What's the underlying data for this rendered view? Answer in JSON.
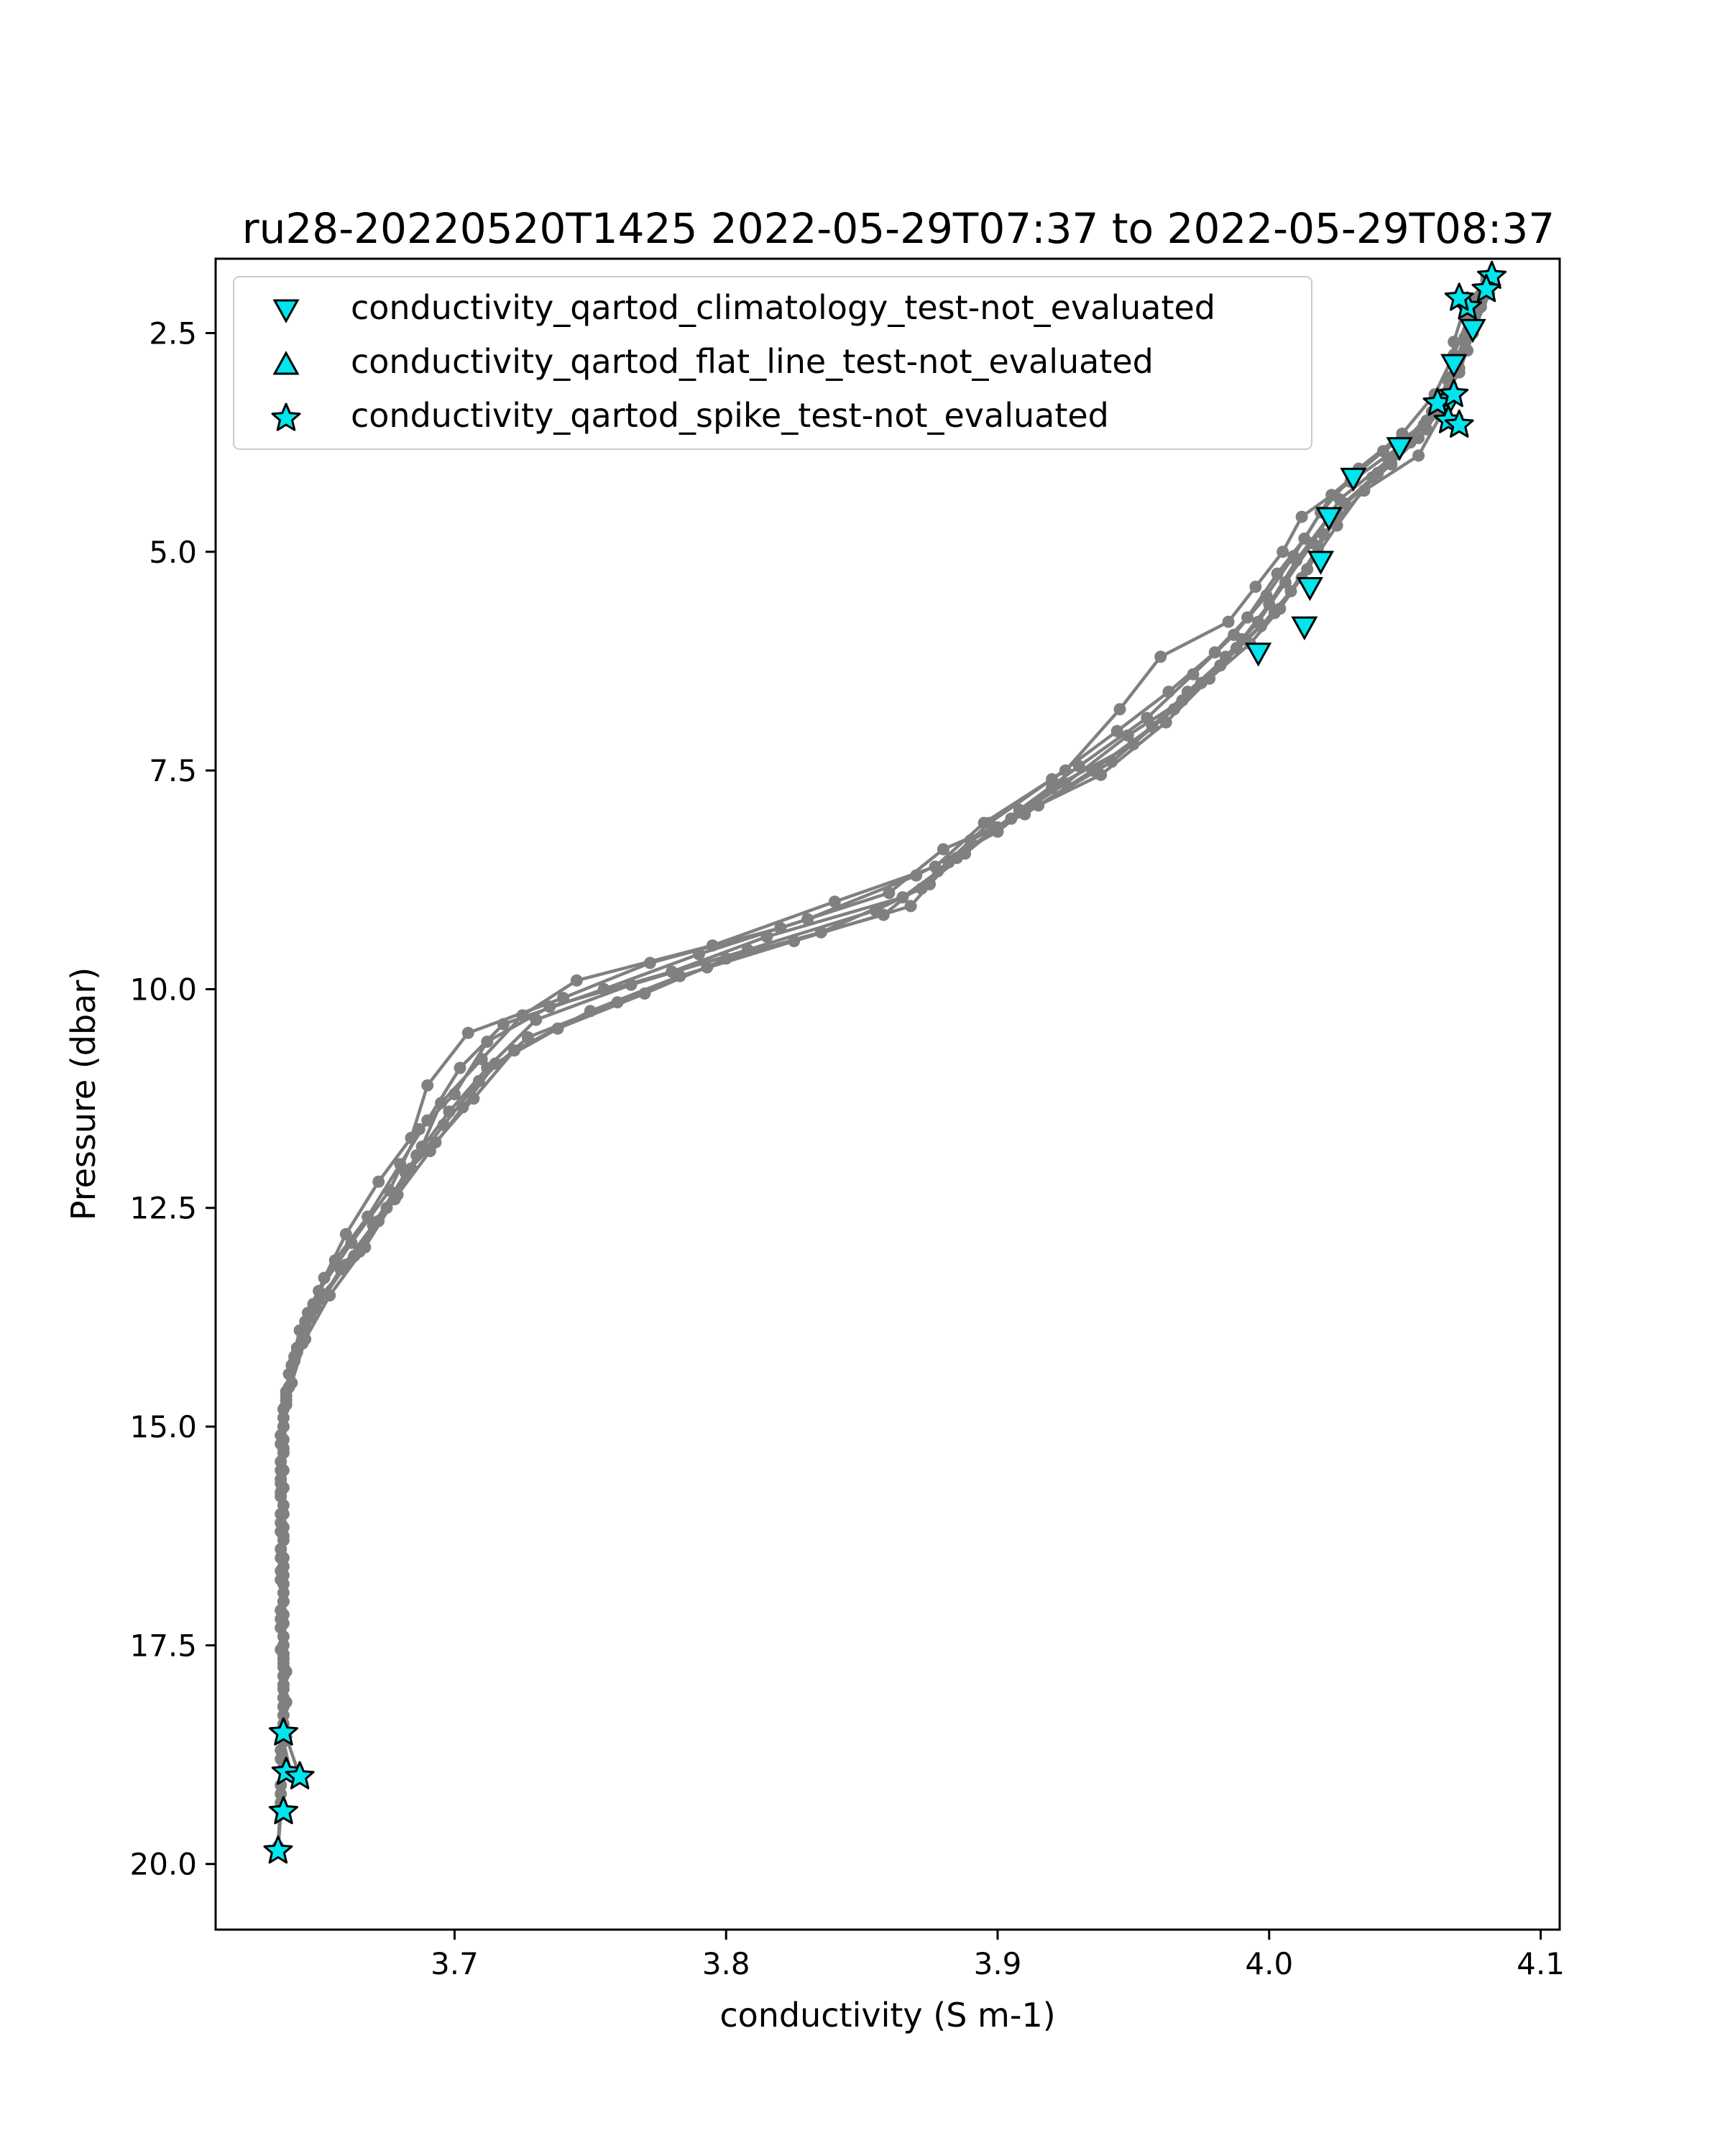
{
  "chart_data": {
    "type": "line",
    "title": "ru28-20220520T1425 2022-05-29T07:37 to 2022-05-29T08:37",
    "xlabel": "conductivity (S m-1)",
    "ylabel": "Pressure (dbar)",
    "xlim": [
      3.612,
      4.107
    ],
    "ylim": [
      20.75,
      1.65
    ],
    "y_inverted": true,
    "x_ticks": [
      "3.7",
      "3.8",
      "3.9",
      "4.0",
      "4.1"
    ],
    "y_ticks": [
      "2.5",
      "5.0",
      "7.5",
      "10.0",
      "12.5",
      "15.0",
      "17.5",
      "20.0"
    ],
    "grid": false,
    "legend_position": "top-left",
    "colors": {
      "profile": "#808080",
      "marker_fill": "#00e5ee",
      "marker_edge": "#000000"
    },
    "legend": [
      {
        "marker": "triangle-down",
        "label": "conductivity_qartod_climatology_test-not_evaluated"
      },
      {
        "marker": "triangle-up",
        "label": "conductivity_qartod_flat_line_test-not_evaluated"
      },
      {
        "marker": "star",
        "label": "conductivity_qartod_spike_test-not_evaluated"
      }
    ],
    "profiles": [
      [
        [
          4.08,
          1.9
        ],
        [
          4.072,
          2.2
        ],
        [
          4.068,
          2.6
        ],
        [
          4.067,
          3.0
        ],
        [
          4.06,
          3.4
        ],
        [
          4.048,
          3.8
        ],
        [
          4.03,
          4.2
        ],
        [
          4.012,
          4.6
        ],
        [
          4.005,
          5.0
        ],
        [
          3.995,
          5.4
        ],
        [
          3.985,
          5.8
        ],
        [
          3.96,
          6.2
        ],
        [
          3.945,
          6.8
        ],
        [
          3.925,
          7.5
        ],
        [
          3.895,
          8.1
        ],
        [
          3.877,
          8.6
        ],
        [
          3.84,
          9.0
        ],
        [
          3.795,
          9.5
        ],
        [
          3.745,
          9.9
        ],
        [
          3.725,
          10.3
        ],
        [
          3.71,
          10.8
        ],
        [
          3.695,
          11.3
        ],
        [
          3.688,
          11.8
        ],
        [
          3.678,
          12.4
        ],
        [
          3.665,
          13.0
        ],
        [
          3.648,
          13.6
        ],
        [
          3.642,
          14.1
        ],
        [
          3.638,
          14.6
        ],
        [
          3.636,
          15.1
        ],
        [
          3.636,
          15.6
        ],
        [
          3.636,
          16.1
        ],
        [
          3.637,
          16.6
        ],
        [
          3.636,
          17.1
        ],
        [
          3.637,
          17.6
        ],
        [
          3.637,
          18.1
        ],
        [
          3.637,
          18.5
        ],
        [
          3.637,
          18.9
        ],
        [
          3.636,
          19.4
        ],
        [
          3.635,
          19.85
        ]
      ],
      [
        [
          4.082,
          1.95
        ],
        [
          4.076,
          2.4
        ],
        [
          4.07,
          2.9
        ],
        [
          4.065,
          3.3
        ],
        [
          4.055,
          3.7
        ],
        [
          4.04,
          4.1
        ],
        [
          4.022,
          4.6
        ],
        [
          4.01,
          5.1
        ],
        [
          4.0,
          5.6
        ],
        [
          3.99,
          6.0
        ],
        [
          3.975,
          6.5
        ],
        [
          3.957,
          7.0
        ],
        [
          3.935,
          7.5
        ],
        [
          3.91,
          8.0
        ],
        [
          3.88,
          8.4
        ],
        [
          3.86,
          8.9
        ],
        [
          3.82,
          9.3
        ],
        [
          3.772,
          9.7
        ],
        [
          3.74,
          10.1
        ],
        [
          3.705,
          10.5
        ],
        [
          3.69,
          11.1
        ],
        [
          3.684,
          11.7
        ],
        [
          3.672,
          12.2
        ],
        [
          3.66,
          12.8
        ],
        [
          3.652,
          13.3
        ],
        [
          3.645,
          13.8
        ],
        [
          3.64,
          14.3
        ],
        [
          3.637,
          14.8
        ],
        [
          3.637,
          15.3
        ],
        [
          3.636,
          15.8
        ],
        [
          3.637,
          16.3
        ],
        [
          3.637,
          16.8
        ],
        [
          3.636,
          17.3
        ],
        [
          3.638,
          17.8
        ],
        [
          3.637,
          18.2
        ],
        [
          3.637,
          18.6
        ],
        [
          3.64,
          19.0
        ]
      ],
      [
        [
          4.08,
          1.85
        ],
        [
          4.078,
          2.15
        ],
        [
          4.072,
          2.55
        ],
        [
          4.066,
          3.05
        ],
        [
          4.063,
          3.45
        ],
        [
          4.055,
          3.9
        ],
        [
          4.035,
          4.3
        ],
        [
          4.02,
          4.8
        ],
        [
          4.012,
          5.3
        ],
        [
          4.002,
          5.7
        ],
        [
          3.988,
          6.1
        ],
        [
          3.97,
          6.6
        ],
        [
          3.95,
          7.2
        ],
        [
          3.92,
          7.7
        ],
        [
          3.9,
          8.2
        ],
        [
          3.87,
          8.7
        ],
        [
          3.83,
          9.2
        ],
        [
          3.79,
          9.6
        ],
        [
          3.755,
          10.0
        ],
        [
          3.718,
          10.4
        ],
        [
          3.702,
          10.9
        ],
        [
          3.69,
          11.5
        ],
        [
          3.68,
          12.0
        ],
        [
          3.668,
          12.6
        ],
        [
          3.656,
          13.1
        ],
        [
          3.646,
          13.7
        ],
        [
          3.641,
          14.2
        ],
        [
          3.638,
          14.7
        ],
        [
          3.636,
          15.2
        ],
        [
          3.637,
          15.7
        ],
        [
          3.636,
          16.2
        ],
        [
          3.637,
          16.7
        ],
        [
          3.636,
          17.2
        ],
        [
          3.637,
          17.7
        ],
        [
          3.638,
          18.15
        ],
        [
          3.638,
          18.55
        ],
        [
          3.643,
          19.0
        ]
      ],
      [
        [
          4.079,
          2.0
        ],
        [
          4.074,
          2.45
        ],
        [
          4.069,
          2.85
        ],
        [
          4.064,
          3.25
        ],
        [
          4.058,
          3.6
        ],
        [
          4.045,
          4.0
        ],
        [
          4.028,
          4.45
        ],
        [
          4.018,
          4.95
        ],
        [
          4.008,
          5.45
        ],
        [
          3.997,
          5.85
        ],
        [
          3.982,
          6.3
        ],
        [
          3.965,
          6.8
        ],
        [
          3.942,
          7.4
        ],
        [
          3.915,
          7.9
        ],
        [
          3.89,
          8.3
        ],
        [
          3.875,
          8.8
        ],
        [
          3.855,
          9.1
        ],
        [
          3.808,
          9.55
        ],
        [
          3.765,
          9.95
        ],
        [
          3.73,
          10.35
        ],
        [
          3.712,
          10.9
        ],
        [
          3.698,
          11.4
        ],
        [
          3.686,
          11.9
        ],
        [
          3.675,
          12.5
        ],
        [
          3.663,
          13.05
        ],
        [
          3.65,
          13.55
        ],
        [
          3.644,
          14.05
        ],
        [
          3.639,
          14.55
        ],
        [
          3.637,
          15.0
        ],
        [
          3.636,
          15.5
        ],
        [
          3.637,
          16.0
        ],
        [
          3.636,
          16.5
        ],
        [
          3.637,
          17.0
        ],
        [
          3.637,
          17.5
        ],
        [
          3.637,
          17.95
        ],
        [
          3.637,
          18.5
        ],
        [
          3.637,
          19.4
        ]
      ],
      [
        [
          4.081,
          2.05
        ],
        [
          4.075,
          2.5
        ],
        [
          4.07,
          2.95
        ],
        [
          4.062,
          3.35
        ],
        [
          4.052,
          3.75
        ],
        [
          4.038,
          4.15
        ],
        [
          4.025,
          4.7
        ],
        [
          4.014,
          5.2
        ],
        [
          4.004,
          5.65
        ],
        [
          3.993,
          6.05
        ],
        [
          3.978,
          6.45
        ],
        [
          3.962,
          6.95
        ],
        [
          3.938,
          7.55
        ],
        [
          3.905,
          8.05
        ],
        [
          3.885,
          8.5
        ],
        [
          3.865,
          8.95
        ],
        [
          3.815,
          9.4
        ],
        [
          3.78,
          9.8
        ],
        [
          3.735,
          10.2
        ],
        [
          3.712,
          10.6
        ],
        [
          3.7,
          11.2
        ],
        [
          3.687,
          11.6
        ],
        [
          3.676,
          12.3
        ],
        [
          3.662,
          12.9
        ],
        [
          3.65,
          13.45
        ],
        [
          3.643,
          13.9
        ],
        [
          3.639,
          14.4
        ],
        [
          3.637,
          14.9
        ],
        [
          3.636,
          15.4
        ],
        [
          3.637,
          15.9
        ],
        [
          3.636,
          16.4
        ],
        [
          3.637,
          16.9
        ],
        [
          3.637,
          17.4
        ],
        [
          3.637,
          17.85
        ],
        [
          3.637,
          18.3
        ],
        [
          3.636,
          18.7
        ],
        [
          3.636,
          19.2
        ],
        [
          3.635,
          19.8
        ]
      ],
      [
        [
          4.077,
          2.1
        ],
        [
          4.072,
          2.6
        ],
        [
          4.067,
          3.1
        ],
        [
          4.058,
          3.5
        ],
        [
          4.044,
          3.95
        ],
        [
          4.026,
          4.4
        ],
        [
          4.016,
          4.9
        ],
        [
          4.006,
          5.35
        ],
        [
          3.996,
          5.8
        ],
        [
          3.984,
          6.2
        ],
        [
          3.968,
          6.7
        ],
        [
          3.948,
          7.1
        ],
        [
          3.925,
          7.65
        ],
        [
          3.9,
          8.15
        ],
        [
          3.882,
          8.55
        ],
        [
          3.868,
          9.05
        ],
        [
          3.825,
          9.45
        ],
        [
          3.783,
          9.85
        ],
        [
          3.75,
          10.25
        ],
        [
          3.722,
          10.7
        ],
        [
          3.707,
          11.25
        ],
        [
          3.693,
          11.75
        ],
        [
          3.682,
          12.1
        ],
        [
          3.67,
          12.7
        ],
        [
          3.658,
          13.2
        ],
        [
          3.647,
          13.75
        ],
        [
          3.641,
          14.25
        ],
        [
          3.638,
          14.75
        ],
        [
          3.637,
          15.25
        ],
        [
          3.636,
          15.75
        ],
        [
          3.637,
          16.25
        ],
        [
          3.636,
          16.75
        ],
        [
          3.637,
          17.25
        ],
        [
          3.637,
          17.75
        ],
        [
          3.637,
          18.2
        ],
        [
          3.637,
          18.6
        ]
      ],
      [
        [
          4.08,
          1.95
        ],
        [
          4.073,
          2.35
        ],
        [
          4.068,
          2.75
        ],
        [
          4.061,
          3.2
        ],
        [
          4.049,
          3.65
        ],
        [
          4.033,
          4.05
        ],
        [
          4.019,
          4.55
        ],
        [
          4.009,
          5.05
        ],
        [
          3.999,
          5.5
        ],
        [
          3.987,
          5.95
        ],
        [
          3.972,
          6.4
        ],
        [
          3.955,
          6.9
        ],
        [
          3.93,
          7.45
        ],
        [
          3.908,
          7.95
        ],
        [
          3.888,
          8.45
        ],
        [
          3.872,
          8.85
        ],
        [
          3.835,
          9.35
        ],
        [
          3.793,
          9.75
        ],
        [
          3.76,
          10.15
        ],
        [
          3.727,
          10.55
        ],
        [
          3.709,
          11.05
        ],
        [
          3.696,
          11.55
        ],
        [
          3.684,
          12.05
        ],
        [
          3.672,
          12.65
        ],
        [
          3.66,
          13.15
        ],
        [
          3.649,
          13.65
        ],
        [
          3.642,
          14.15
        ],
        [
          3.638,
          14.65
        ],
        [
          3.637,
          15.15
        ],
        [
          3.636,
          15.65
        ],
        [
          3.637,
          16.15
        ],
        [
          3.636,
          16.65
        ],
        [
          3.637,
          17.15
        ],
        [
          3.637,
          17.65
        ],
        [
          3.637,
          18.1
        ],
        [
          3.636,
          18.8
        ],
        [
          3.636,
          19.3
        ]
      ],
      [
        [
          4.078,
          2.2
        ],
        [
          4.073,
          2.7
        ],
        [
          4.066,
          3.15
        ],
        [
          4.057,
          3.55
        ],
        [
          4.042,
          3.85
        ],
        [
          4.023,
          4.35
        ],
        [
          4.013,
          4.85
        ],
        [
          4.003,
          5.25
        ],
        [
          3.992,
          5.75
        ],
        [
          3.98,
          6.15
        ],
        [
          3.963,
          6.6
        ],
        [
          3.944,
          7.05
        ],
        [
          3.92,
          7.6
        ],
        [
          3.897,
          8.1
        ],
        [
          3.878,
          8.65
        ],
        [
          3.858,
          9.15
        ],
        [
          3.8,
          9.65
        ],
        [
          3.77,
          10.05
        ],
        [
          3.738,
          10.45
        ],
        [
          3.715,
          10.85
        ],
        [
          3.703,
          11.35
        ],
        [
          3.691,
          11.85
        ],
        [
          3.679,
          12.35
        ],
        [
          3.667,
          12.95
        ],
        [
          3.654,
          13.5
        ],
        [
          3.645,
          14.0
        ],
        [
          3.64,
          14.5
        ],
        [
          3.637,
          15.0
        ],
        [
          3.637,
          15.5
        ],
        [
          3.636,
          16.0
        ],
        [
          3.637,
          16.5
        ],
        [
          3.637,
          17.0
        ],
        [
          3.636,
          17.55
        ],
        [
          3.637,
          18.0
        ],
        [
          3.637,
          18.4
        ],
        [
          3.636,
          19.1
        ]
      ]
    ],
    "climatology_markers": [
      [
        4.075,
        2.45
      ],
      [
        4.068,
        2.85
      ],
      [
        4.066,
        3.3
      ],
      [
        4.048,
        3.8
      ],
      [
        4.031,
        4.15
      ],
      [
        4.022,
        4.6
      ],
      [
        4.019,
        5.1
      ],
      [
        4.015,
        5.4
      ],
      [
        4.013,
        5.85
      ],
      [
        3.996,
        6.15
      ]
    ],
    "spike_markers": [
      [
        4.082,
        1.85
      ],
      [
        4.08,
        2.0
      ],
      [
        4.073,
        2.2
      ],
      [
        4.07,
        2.1
      ],
      [
        4.062,
        3.3
      ],
      [
        4.068,
        3.2
      ],
      [
        4.066,
        3.5
      ],
      [
        4.07,
        3.55
      ],
      [
        3.637,
        18.5
      ],
      [
        3.638,
        18.95
      ],
      [
        3.643,
        19.0
      ],
      [
        3.637,
        19.4
      ],
      [
        3.635,
        19.85
      ]
    ]
  }
}
